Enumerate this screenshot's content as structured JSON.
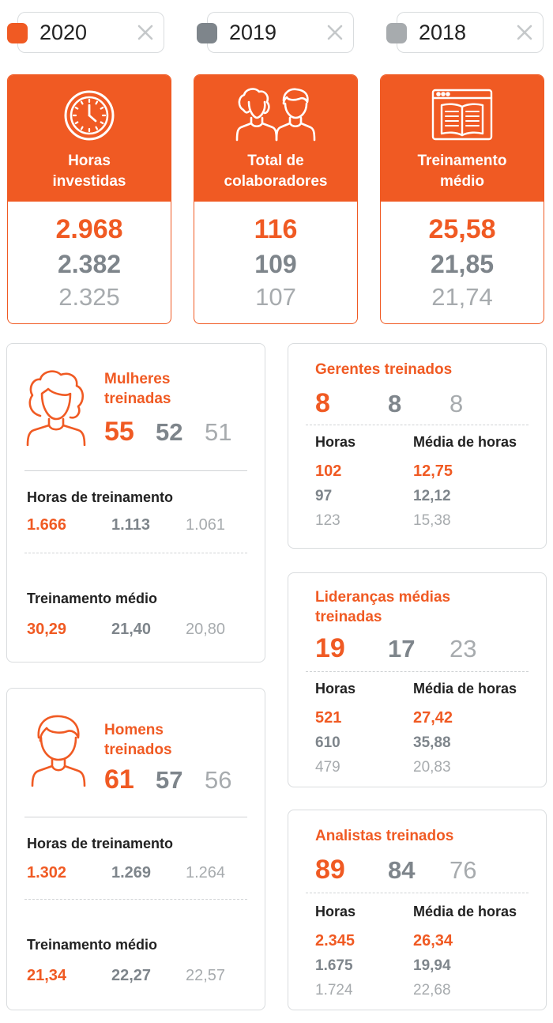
{
  "legend": [
    {
      "year": "2020",
      "color": "#f05a23"
    },
    {
      "year": "2019",
      "color": "#7e858b"
    },
    {
      "year": "2018",
      "color": "#a7abae"
    }
  ],
  "summary": [
    {
      "title_line1": "Horas",
      "title_line2": "investidas",
      "icon": "clock-icon",
      "v2020": "2.968",
      "v2019": "2.382",
      "v2018": "2.325"
    },
    {
      "title_line1": "Total de",
      "title_line2": "colaboradores",
      "icon": "people-icon",
      "v2020": "116",
      "v2019": "109",
      "v2018": "107"
    },
    {
      "title_line1": "Treinamento",
      "title_line2": "médio",
      "icon": "book-icon",
      "v2020": "25,58",
      "v2019": "21,85",
      "v2018": "21,74"
    }
  ],
  "women": {
    "title_line1": "Mulheres",
    "title_line2": "treinadas",
    "count": {
      "v2020": "55",
      "v2019": "52",
      "v2018": "51"
    },
    "hours_label": "Horas de treinamento",
    "hours": {
      "v2020": "1.666",
      "v2019": "1.113",
      "v2018": "1.061"
    },
    "avg_label": "Treinamento médio",
    "avg": {
      "v2020": "30,29",
      "v2019": "21,40",
      "v2018": "20,80"
    }
  },
  "men": {
    "title_line1": "Homens",
    "title_line2": "treinados",
    "count": {
      "v2020": "61",
      "v2019": "57",
      "v2018": "56"
    },
    "hours_label": "Horas de treinamento",
    "hours": {
      "v2020": "1.302",
      "v2019": "1.269",
      "v2018": "1.264"
    },
    "avg_label": "Treinamento médio",
    "avg": {
      "v2020": "21,34",
      "v2019": "22,27",
      "v2018": "22,57"
    }
  },
  "managers": {
    "title": "Gerentes treinados",
    "count": {
      "v2020": "8",
      "v2019": "8",
      "v2018": "8"
    },
    "hours_label": "Horas",
    "avg_label": "Média de horas",
    "hours": {
      "v2020": "102",
      "v2019": "97",
      "v2018": "123"
    },
    "avg": {
      "v2020": "12,75",
      "v2019": "12,12",
      "v2018": "15,38"
    }
  },
  "middle": {
    "title_line1": "Lideranças médias",
    "title_line2": "treinadas",
    "count": {
      "v2020": "19",
      "v2019": "17",
      "v2018": "23"
    },
    "hours_label": "Horas",
    "avg_label": "Média de horas",
    "hours": {
      "v2020": "521",
      "v2019": "610",
      "v2018": "479"
    },
    "avg": {
      "v2020": "27,42",
      "v2019": "35,88",
      "v2018": "20,83"
    }
  },
  "analysts": {
    "title": "Analistas treinados",
    "count": {
      "v2020": "89",
      "v2019": "84",
      "v2018": "76"
    },
    "hours_label": "Horas",
    "avg_label": "Média de horas",
    "hours": {
      "v2020": "2.345",
      "v2019": "1.675",
      "v2018": "1.724"
    },
    "avg": {
      "v2020": "26,34",
      "v2019": "19,94",
      "v2018": "22,68"
    }
  }
}
